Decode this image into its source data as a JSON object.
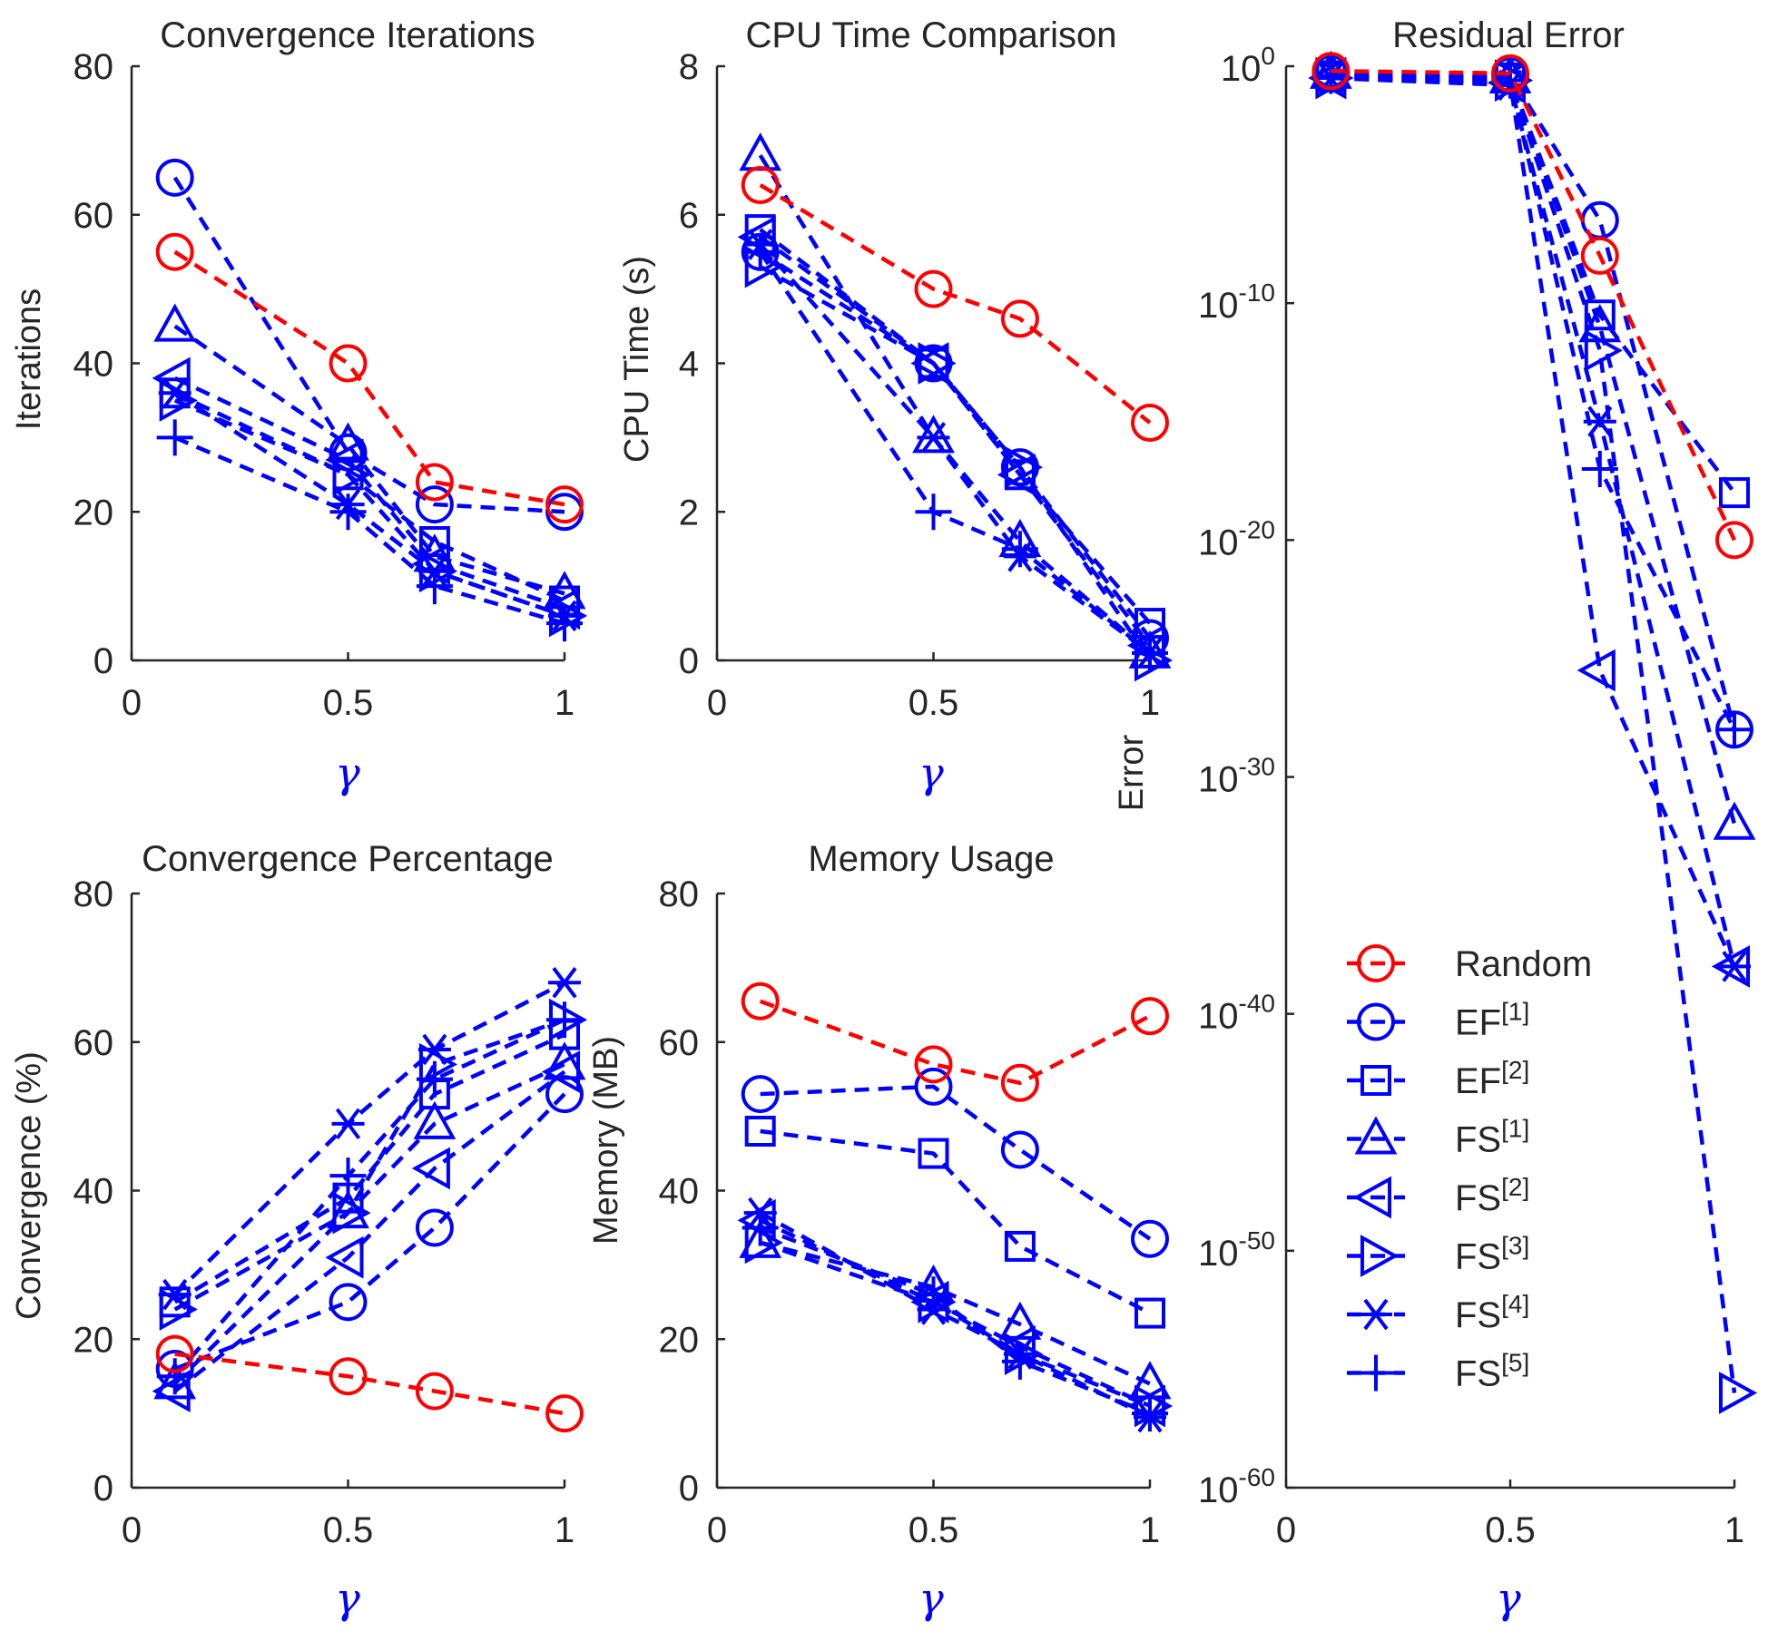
{
  "chart_data": [
    {
      "id": "iterations",
      "type": "line",
      "title": "Convergence Iterations",
      "xlabel": "γ",
      "ylabel": "Iterations",
      "xlim": [
        0,
        1
      ],
      "ylim": [
        0,
        80
      ],
      "yscale": "linear",
      "xticks": [
        0,
        0.5,
        1
      ],
      "xtick_labels": [
        "0",
        "0.5",
        "1"
      ],
      "yticks": [
        0,
        20,
        40,
        60,
        80
      ],
      "ytick_labels": [
        "0",
        "20",
        "40",
        "60",
        "80"
      ],
      "x": [
        0.1,
        0.5,
        0.7,
        1.0
      ],
      "series": [
        {
          "name": "Random",
          "values": [
            55,
            40,
            24,
            21
          ]
        },
        {
          "name": "EF[1]",
          "values": [
            65,
            28,
            21,
            20
          ]
        },
        {
          "name": "EF[2]",
          "values": [
            36,
            25,
            16,
            8
          ]
        },
        {
          "name": "FS[1]",
          "values": [
            45,
            29,
            14,
            9
          ]
        },
        {
          "name": "FS[2]",
          "values": [
            38,
            27,
            13,
            7
          ]
        },
        {
          "name": "FS[3]",
          "values": [
            35,
            25,
            12,
            6
          ]
        },
        {
          "name": "FS[4]",
          "values": [
            36,
            21,
            12,
            6
          ]
        },
        {
          "name": "FS[5]",
          "values": [
            30,
            20,
            10,
            5
          ]
        }
      ]
    },
    {
      "id": "cputime",
      "type": "line",
      "title": "CPU Time Comparison",
      "xlabel": "γ",
      "ylabel": "CPU Time (s)",
      "xlim": [
        0,
        1
      ],
      "ylim": [
        0,
        8
      ],
      "yscale": "linear",
      "xticks": [
        0,
        0.5,
        1
      ],
      "xtick_labels": [
        "0",
        "0.5",
        "1"
      ],
      "yticks": [
        0,
        2,
        4,
        6,
        8
      ],
      "ytick_labels": [
        "0",
        "2",
        "4",
        "6",
        "8"
      ],
      "x": [
        0.1,
        0.5,
        0.7,
        1.0
      ],
      "series": [
        {
          "name": "Random",
          "values": [
            6.4,
            5.0,
            4.6,
            3.2
          ]
        },
        {
          "name": "EF[1]",
          "values": [
            5.5,
            4.0,
            2.6,
            0.3
          ]
        },
        {
          "name": "EF[2]",
          "values": [
            5.8,
            4.0,
            2.5,
            0.5
          ]
        },
        {
          "name": "FS[1]",
          "values": [
            6.8,
            3.0,
            1.6,
            0.1
          ]
        },
        {
          "name": "FS[2]",
          "values": [
            5.7,
            4.0,
            2.5,
            0.2
          ]
        },
        {
          "name": "FS[3]",
          "values": [
            5.3,
            4.0,
            2.6,
            0.0
          ]
        },
        {
          "name": "FS[4]",
          "values": [
            5.6,
            3.0,
            1.4,
            0.1
          ]
        },
        {
          "name": "FS[5]",
          "values": [
            5.5,
            2.0,
            1.5,
            0.1
          ]
        }
      ]
    },
    {
      "id": "residual",
      "type": "line",
      "title": "Residual Error",
      "xlabel": "γ",
      "ylabel": "Error",
      "xlim": [
        0,
        1
      ],
      "ylim_exponent": [
        -60,
        0
      ],
      "yscale": "log",
      "xticks": [
        0,
        0.5,
        1
      ],
      "xtick_labels": [
        "0",
        "0.5",
        "1"
      ],
      "ytick_exponents": [
        0,
        -10,
        -20,
        -30,
        -40,
        -50,
        -60
      ],
      "ytick_labels": [
        "0",
        "-10",
        "-20",
        "-30",
        "-40",
        "-50",
        "-60"
      ],
      "ytick_base": "10",
      "x": [
        0.1,
        0.5,
        0.7,
        1.0
      ],
      "series": [
        {
          "name": "Random",
          "exponents": [
            -0.2,
            -0.3,
            -8.0,
            -20.0
          ]
        },
        {
          "name": "EF[1]",
          "exponents": [
            -0.3,
            -0.4,
            -6.5,
            -28.0
          ]
        },
        {
          "name": "EF[2]",
          "exponents": [
            -0.4,
            -0.5,
            -10.5,
            -18.0
          ]
        },
        {
          "name": "FS[1]",
          "exponents": [
            -0.3,
            -0.5,
            -11.0,
            -32.0
          ]
        },
        {
          "name": "FS[2]",
          "exponents": [
            -0.5,
            -0.7,
            -25.5,
            -38.0
          ]
        },
        {
          "name": "FS[3]",
          "exponents": [
            -0.5,
            -0.6,
            -12.0,
            -56.0
          ]
        },
        {
          "name": "FS[4]",
          "exponents": [
            -0.5,
            -0.8,
            -15.0,
            -38.0
          ]
        },
        {
          "name": "FS[5]",
          "exponents": [
            -0.4,
            -0.6,
            -17.0,
            -28.0
          ]
        }
      ]
    },
    {
      "id": "convergence",
      "type": "line",
      "title": "Convergence Percentage",
      "xlabel": "γ",
      "ylabel": "Convergence (%)",
      "xlim": [
        0,
        1
      ],
      "ylim": [
        0,
        80
      ],
      "yscale": "linear",
      "xticks": [
        0,
        0.5,
        1
      ],
      "xtick_labels": [
        "0",
        "0.5",
        "1"
      ],
      "yticks": [
        0,
        20,
        40,
        60,
        80
      ],
      "ytick_labels": [
        "0",
        "20",
        "40",
        "60",
        "80"
      ],
      "x": [
        0.1,
        0.5,
        0.7,
        1.0
      ],
      "series": [
        {
          "name": "Random",
          "values": [
            18,
            15,
            13,
            10
          ]
        },
        {
          "name": "EF[1]",
          "values": [
            16,
            25,
            35,
            53
          ]
        },
        {
          "name": "EF[2]",
          "values": [
            25,
            39,
            53,
            61
          ]
        },
        {
          "name": "FS[1]",
          "values": [
            14,
            37,
            49,
            57
          ]
        },
        {
          "name": "FS[2]",
          "values": [
            13,
            31,
            43,
            56
          ]
        },
        {
          "name": "FS[3]",
          "values": [
            24,
            37,
            57,
            63
          ]
        },
        {
          "name": "FS[4]",
          "values": [
            26,
            49,
            59,
            68
          ]
        },
        {
          "name": "FS[5]",
          "values": [
            15,
            42,
            55,
            63
          ]
        }
      ]
    },
    {
      "id": "memory",
      "type": "line",
      "title": "Memory Usage",
      "xlabel": "γ",
      "ylabel": "Memory (MB)",
      "xlim": [
        0,
        1
      ],
      "ylim": [
        0,
        80
      ],
      "yscale": "linear",
      "xticks": [
        0,
        0.5,
        1
      ],
      "xtick_labels": [
        "0",
        "0.5",
        "1"
      ],
      "yticks": [
        0,
        20,
        40,
        60,
        80
      ],
      "ytick_labels": [
        "0",
        "20",
        "40",
        "60",
        "80"
      ],
      "x": [
        0.1,
        0.5,
        0.7,
        1.0
      ],
      "series": [
        {
          "name": "Random",
          "values": [
            65.5,
            57,
            54.5,
            63.5
          ]
        },
        {
          "name": "EF[1]",
          "values": [
            53,
            54,
            45.5,
            33.5
          ]
        },
        {
          "name": "EF[2]",
          "values": [
            48,
            45,
            32.5,
            23.5
          ]
        },
        {
          "name": "FS[1]",
          "values": [
            33,
            27,
            22,
            14
          ]
        },
        {
          "name": "FS[2]",
          "values": [
            36,
            25,
            19,
            11
          ]
        },
        {
          "name": "FS[3]",
          "values": [
            33,
            25,
            18,
            11
          ]
        },
        {
          "name": "FS[4]",
          "values": [
            37,
            24,
            18,
            9.5
          ]
        },
        {
          "name": "FS[5]",
          "values": [
            35,
            26,
            17,
            10
          ]
        }
      ]
    }
  ],
  "legend": {
    "placement": "inside lower-left of Residual Error panel",
    "entries": [
      {
        "name": "Random",
        "base": "Random",
        "sup": "",
        "marker": "circle",
        "color": "#ff0000"
      },
      {
        "name": "EF[1]",
        "base": "EF",
        "sup": "[1]",
        "marker": "circle",
        "color": "#0000ff"
      },
      {
        "name": "EF[2]",
        "base": "EF",
        "sup": "[2]",
        "marker": "square",
        "color": "#0000ff"
      },
      {
        "name": "FS[1]",
        "base": "FS",
        "sup": "[1]",
        "marker": "triangle-up",
        "color": "#0000ff"
      },
      {
        "name": "FS[2]",
        "base": "FS",
        "sup": "[2]",
        "marker": "triangle-left",
        "color": "#0000ff"
      },
      {
        "name": "FS[3]",
        "base": "FS",
        "sup": "[3]",
        "marker": "triangle-right",
        "color": "#0000ff"
      },
      {
        "name": "FS[4]",
        "base": "FS",
        "sup": "[4]",
        "marker": "asterisk",
        "color": "#0000ff"
      },
      {
        "name": "FS[5]",
        "base": "FS",
        "sup": "[5]",
        "marker": "plus",
        "color": "#0000ff"
      }
    ]
  },
  "colors": {
    "random": "#ff0000",
    "methods": "#0000ff",
    "axis": "#262626",
    "xlabel": "#0000ff"
  }
}
